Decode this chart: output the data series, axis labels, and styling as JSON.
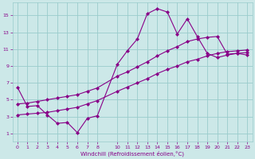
{
  "title": "",
  "xlabel": "Windchill (Refroidissement éolien,°C)",
  "bg_color": "#cce8e8",
  "line_color": "#880088",
  "grid_color": "#99cccc",
  "xlim": [
    -0.5,
    23.5
  ],
  "ylim": [
    0,
    16.5
  ],
  "xticks": [
    0,
    1,
    2,
    3,
    4,
    5,
    6,
    7,
    8,
    10,
    11,
    12,
    13,
    14,
    15,
    16,
    17,
    18,
    19,
    20,
    21,
    22,
    23
  ],
  "yticks": [
    1,
    3,
    5,
    7,
    9,
    11,
    13,
    15
  ],
  "line1_x": [
    0,
    1,
    2,
    3,
    4,
    5,
    6,
    7,
    8,
    10,
    11,
    12,
    13,
    14,
    15,
    16,
    17,
    18,
    19,
    20,
    21,
    22,
    23
  ],
  "line1_y": [
    6.5,
    4.2,
    4.3,
    3.2,
    2.2,
    2.3,
    1.1,
    2.8,
    3.1,
    9.2,
    10.8,
    12.2,
    15.2,
    15.8,
    15.4,
    12.8,
    14.6,
    12.5,
    10.5,
    10.0,
    10.3,
    10.5,
    10.3
  ],
  "line2_x": [
    0,
    1,
    2,
    3,
    4,
    5,
    6,
    7,
    8,
    10,
    11,
    12,
    13,
    14,
    15,
    16,
    17,
    18,
    19,
    20,
    21,
    22,
    23
  ],
  "line2_y": [
    3.2,
    3.3,
    3.4,
    3.5,
    3.7,
    3.9,
    4.1,
    4.5,
    4.9,
    6.0,
    6.5,
    7.0,
    7.5,
    8.1,
    8.6,
    9.0,
    9.5,
    9.8,
    10.2,
    10.5,
    10.7,
    10.8,
    10.9
  ],
  "line3_x": [
    0,
    1,
    2,
    3,
    4,
    5,
    6,
    7,
    8,
    10,
    11,
    12,
    13,
    14,
    15,
    16,
    17,
    18,
    19,
    20,
    21,
    22,
    23
  ],
  "line3_y": [
    4.5,
    4.6,
    4.8,
    5.0,
    5.2,
    5.4,
    5.6,
    6.0,
    6.4,
    7.8,
    8.3,
    8.9,
    9.5,
    10.2,
    10.8,
    11.3,
    11.9,
    12.2,
    12.4,
    12.5,
    10.4,
    10.5,
    10.6
  ]
}
